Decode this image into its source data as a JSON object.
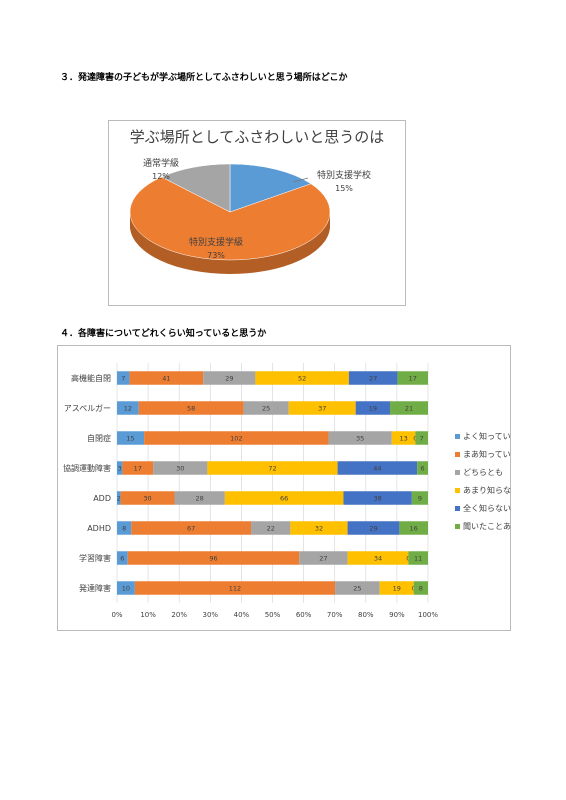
{
  "headings": [
    "３．発達障害の子どもが学ぶ場所としてふさわしいと思う場所はどこか",
    "４．各障害についてどれくらい知っていると思うか"
  ],
  "chart_data": [
    {
      "type": "pie",
      "title": "学ぶ場所としてふさわしいと思うのは",
      "categories": [
        "特別支援学校",
        "特別支援学級",
        "通常学級"
      ],
      "values": [
        15,
        73,
        12
      ],
      "value_labels": [
        "15%",
        "73%",
        "12%"
      ],
      "colors": [
        "#5b9bd5",
        "#ed7d31",
        "#a5a5a5"
      ]
    },
    {
      "type": "stacked_percent_barh",
      "categories": [
        "高機能自閉",
        "アスペルガー",
        "自閉症",
        "協調運動障害",
        "ADD",
        "ADHD",
        "学習障害",
        "発達障害"
      ],
      "series": [
        {
          "name": "よく知っている",
          "color": "#5b9bd5",
          "values": [
            7,
            12,
            15,
            3,
            2,
            8,
            6,
            10
          ]
        },
        {
          "name": "まあ知っている",
          "color": "#ed7d31",
          "values": [
            41,
            58,
            102,
            17,
            30,
            67,
            96,
            112
          ]
        },
        {
          "name": "どちらとも",
          "color": "#a5a5a5",
          "values": [
            29,
            25,
            35,
            30,
            28,
            22,
            27,
            25
          ]
        },
        {
          "name": "あまり知らない",
          "color": "#ffc000",
          "values": [
            52,
            37,
            13,
            72,
            66,
            32,
            34,
            19
          ]
        },
        {
          "name": "全く知らない",
          "color": "#4472c4",
          "values": [
            27,
            19,
            0,
            44,
            38,
            29,
            0,
            0
          ]
        },
        {
          "name": "聞いたことあり",
          "color": "#70ad47",
          "values": [
            17,
            21,
            7,
            6,
            9,
            16,
            11,
            8
          ]
        }
      ],
      "xlim": [
        0,
        100
      ],
      "xticks": [
        {
          "value": 0,
          "label": "0%"
        },
        {
          "value": 10,
          "label": "10%"
        },
        {
          "value": 20,
          "label": "20%"
        },
        {
          "value": 30,
          "label": "30%"
        },
        {
          "value": 40,
          "label": "40%"
        },
        {
          "value": 50,
          "label": "50%"
        },
        {
          "value": 60,
          "label": "60%"
        },
        {
          "value": 70,
          "label": "70%"
        },
        {
          "value": 80,
          "label": "80%"
        },
        {
          "value": 90,
          "label": "90%"
        },
        {
          "value": 100,
          "label": "100%"
        }
      ],
      "grid": true
    }
  ]
}
